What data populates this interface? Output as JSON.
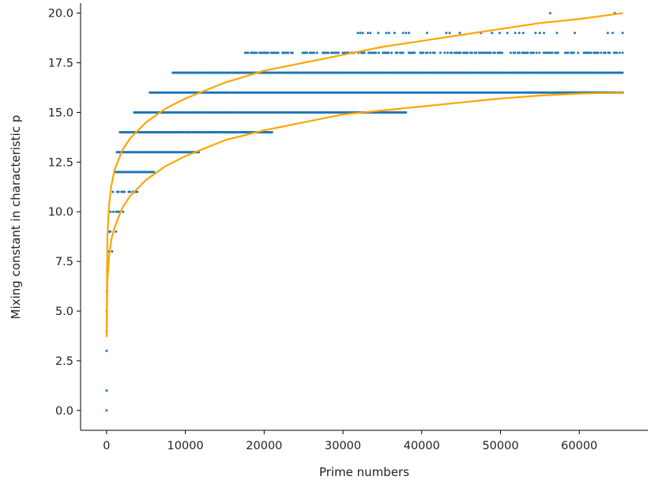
{
  "chart_data": {
    "type": "scatter",
    "title": "",
    "xlabel": "Prime numbers",
    "ylabel": "Mixing constant in characteristic p",
    "xlim": [
      -3300,
      68700
    ],
    "ylim": [
      -1.0,
      20.5
    ],
    "x_ticks": [
      0,
      10000,
      20000,
      30000,
      40000,
      50000,
      60000
    ],
    "x_tick_labels": [
      "0",
      "10000",
      "20000",
      "30000",
      "40000",
      "50000",
      "60000"
    ],
    "y_ticks": [
      0.0,
      2.5,
      5.0,
      7.5,
      10.0,
      12.5,
      15.0,
      17.5,
      20.0
    ],
    "y_tick_labels": [
      "0.0",
      "2.5",
      "5.0",
      "7.5",
      "10.0",
      "12.5",
      "15.0",
      "17.5",
      "20.0"
    ],
    "grid": false,
    "legend": false,
    "colors": {
      "points": "#1f77b4",
      "bounds": "#ffa500",
      "axes": "#000000"
    },
    "scatter_bands": [
      {
        "y": 0,
        "x_min": 2,
        "x_max": 2,
        "density": "single"
      },
      {
        "y": 1,
        "x_min": 3,
        "x_max": 3,
        "density": "single"
      },
      {
        "y": 3,
        "x_min": 5,
        "x_max": 7,
        "density": "single"
      },
      {
        "y": 4,
        "x_min": 11,
        "x_max": 13,
        "density": "single"
      },
      {
        "y": 5,
        "x_min": 17,
        "x_max": 31,
        "density": "single"
      },
      {
        "y": 6,
        "x_min": 37,
        "x_max": 61,
        "density": "single"
      },
      {
        "y": 7,
        "x_min": 71,
        "x_max": 220,
        "density": "sparse"
      },
      {
        "y": 8,
        "x_min": 150,
        "x_max": 700,
        "density": "sparse"
      },
      {
        "y": 9,
        "x_min": 300,
        "x_max": 1200,
        "density": "sparse"
      },
      {
        "y": 10,
        "x_min": 500,
        "x_max": 2100,
        "density": "medium"
      },
      {
        "y": 11,
        "x_min": 800,
        "x_max": 3900,
        "density": "medium"
      },
      {
        "y": 12,
        "x_min": 1000,
        "x_max": 6000,
        "density": "dense"
      },
      {
        "y": 13,
        "x_min": 1300,
        "x_max": 11700,
        "density": "dense"
      },
      {
        "y": 14,
        "x_min": 1700,
        "x_max": 21000,
        "density": "dense"
      },
      {
        "y": 15,
        "x_min": 3500,
        "x_max": 38000,
        "density": "dense"
      },
      {
        "y": 16,
        "x_min": 5500,
        "x_max": 65500,
        "density": "dense"
      },
      {
        "y": 17,
        "x_min": 8400,
        "x_max": 65500,
        "density": "dense"
      },
      {
        "y": 18,
        "x_min": 17600,
        "x_max": 65500,
        "density": "medium"
      },
      {
        "y": 19,
        "x_min": 31900,
        "x_max": 65500,
        "density": "sparse"
      },
      {
        "y": 20,
        "x_min": 56300,
        "x_max": 64500,
        "density": "single"
      }
    ],
    "series": [
      {
        "x": [
          2,
          100,
          300,
          600,
          1000,
          2000,
          3000,
          5000,
          7500,
          10000,
          15000,
          20000,
          25000,
          30000,
          35000,
          40000,
          45000,
          50000,
          55000,
          60000,
          65536
        ],
        "y": [
          3.7,
          8.7,
          10.3,
          11.3,
          12.1,
          13.1,
          13.7,
          14.5,
          15.2,
          15.7,
          16.5,
          17.1,
          17.5,
          17.9,
          18.3,
          18.6,
          18.9,
          19.2,
          19.5,
          19.7,
          20.0
        ]
      },
      {
        "x": [
          2,
          100,
          300,
          600,
          1000,
          2000,
          3000,
          5000,
          7500,
          10000,
          15000,
          20000,
          25000,
          30000,
          35000,
          40000,
          45000,
          50000,
          55000,
          60000,
          65536
        ],
        "y": [
          3.7,
          6.5,
          7.7,
          8.6,
          9.2,
          10.2,
          10.8,
          11.6,
          12.3,
          12.8,
          13.6,
          14.1,
          14.5,
          14.9,
          15.1,
          15.3,
          15.5,
          15.7,
          15.85,
          15.95,
          16.0
        ]
      }
    ]
  }
}
